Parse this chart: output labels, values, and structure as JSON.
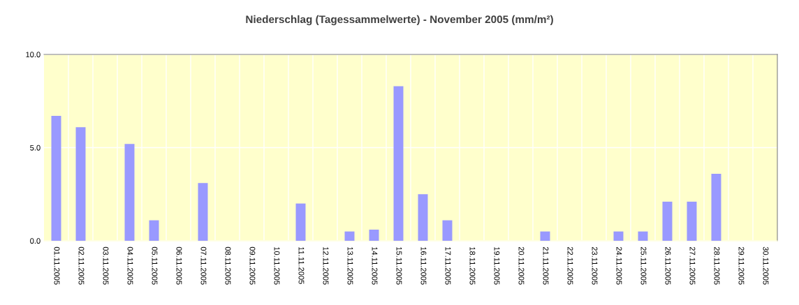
{
  "chart_data": {
    "type": "bar",
    "title": "Niederschlag (Tagessammelwerte) - November 2005 (mm/m²)",
    "categories": [
      "01.11.2005",
      "02.11.2005",
      "03.11.2005",
      "04.11.2005",
      "05.11.2005",
      "06.11.2005",
      "07.11.2005",
      "08.11.2005",
      "09.11.2005",
      "10.11.2005",
      "11.11.2005",
      "12.11.2005",
      "13.11.2005",
      "14.11.2005",
      "15.11.2005",
      "16.11.2005",
      "17.11.2005",
      "18.11.2005",
      "19.11.2005",
      "20.11.2005",
      "21.11.2005",
      "22.11.2005",
      "23.11.2005",
      "24.11.2005",
      "25.11.2005",
      "26.11.2005",
      "27.11.2005",
      "28.11.2005",
      "29.11.2005",
      "30.11.2005"
    ],
    "values": [
      6.7,
      6.1,
      0,
      5.2,
      1.1,
      0,
      3.1,
      0,
      0,
      0,
      2.0,
      0,
      0.5,
      0.6,
      8.3,
      2.5,
      1.1,
      0,
      0,
      0,
      0.5,
      0,
      0,
      0.5,
      0.5,
      2.1,
      2.1,
      3.6,
      0,
      0
    ],
    "color": "#9999ff",
    "ylim": [
      0,
      10
    ],
    "yticks": [
      {
        "value": 0,
        "label": "0.0"
      },
      {
        "value": 5,
        "label": "5.0"
      },
      {
        "value": 10,
        "label": "10.0"
      }
    ],
    "grid": true
  }
}
